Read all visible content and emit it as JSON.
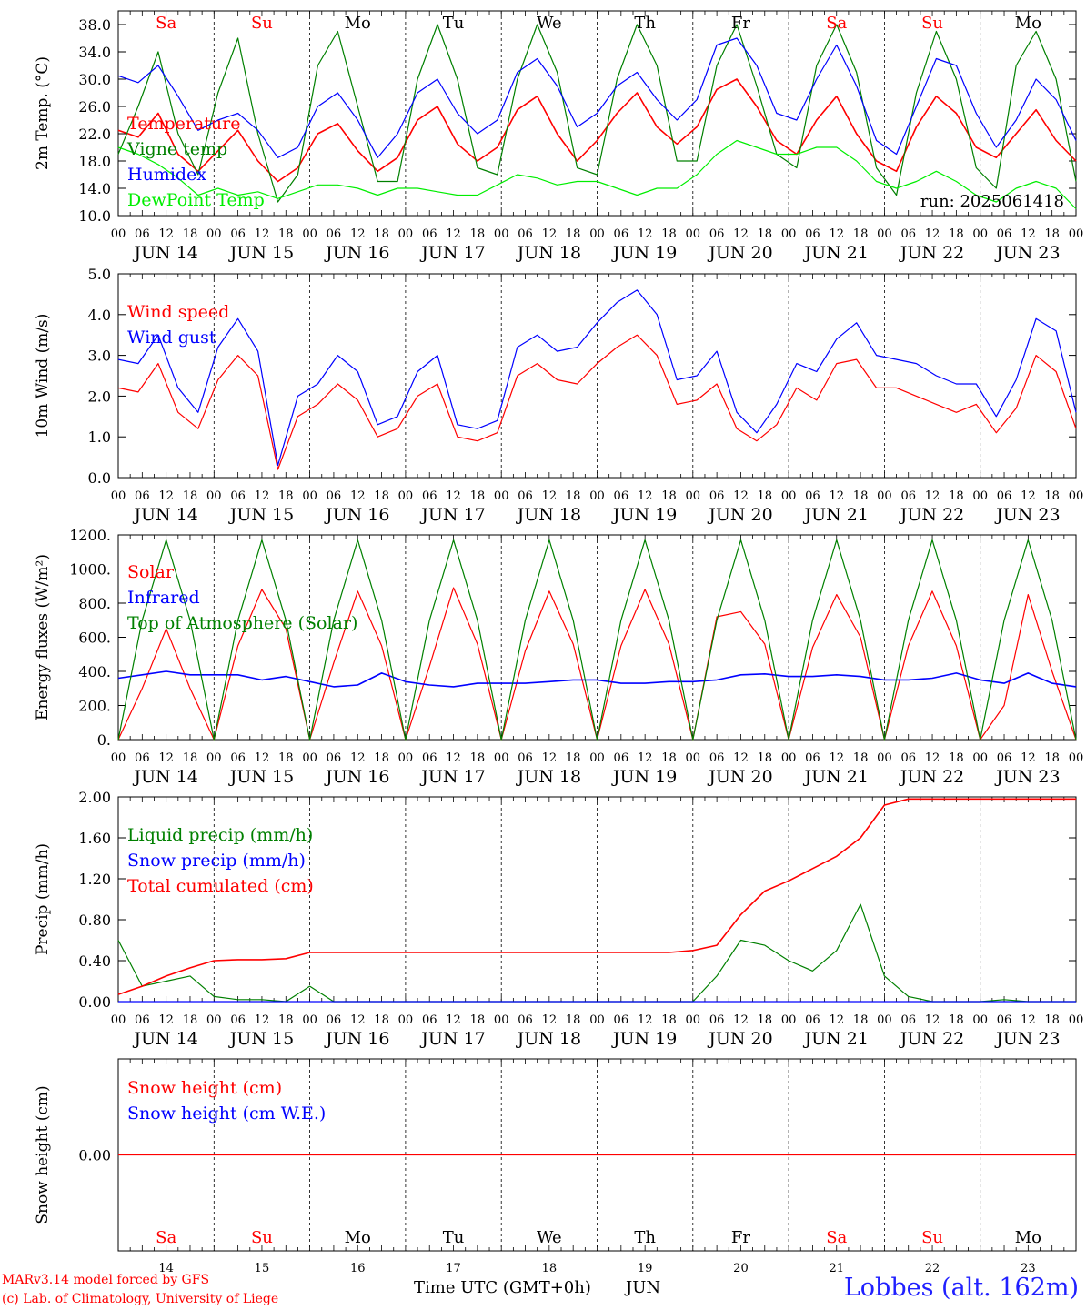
{
  "colors": {
    "red": "#ff0000",
    "dark_green": "#008000",
    "blue": "#0000ff",
    "light_green": "#00ee00",
    "black": "#000000"
  },
  "day_names": [
    "Sa",
    "Su",
    "Mo",
    "Tu",
    "We",
    "Th",
    "Fr",
    "Sa",
    "Su",
    "Mo"
  ],
  "weekend_days": [
    "Sa",
    "Su"
  ],
  "date_labels": [
    "JUN 14",
    "JUN 15",
    "JUN 16",
    "JUN 17",
    "JUN 18",
    "JUN 19",
    "JUN 20",
    "JUN 21",
    "JUN 22",
    "JUN 23"
  ],
  "hour_ticks": [
    "00",
    "06",
    "12",
    "18"
  ],
  "hour_end": "00",
  "bottom_day_numbers": [
    "14",
    "15",
    "16",
    "17",
    "18",
    "19",
    "20",
    "21",
    "22",
    "23"
  ],
  "footer": {
    "credit_line1": "MARv3.14 model forced by GFS",
    "credit_line2": "(c) Lab. of Climatology, University of Liege",
    "x_title": "Time UTC (GMT+0h)",
    "x_month": "JUN",
    "station": "Lobbes (alt. 162m)"
  },
  "chart_data": [
    {
      "type": "line",
      "ylabel": "2m Temp. (°C)",
      "ylim": [
        10,
        40
      ],
      "yticks": [
        "10.0",
        "14.0",
        "18.0",
        "22.0",
        "26.0",
        "30.0",
        "34.0",
        "38.0"
      ],
      "annotation": "run: 2025061418",
      "x_hours": {
        "start": "2025-06-14 00 UTC",
        "step_hours": 6
      },
      "legend": [
        {
          "name": "Temperature",
          "color": "#ff0000"
        },
        {
          "name": "Vigne temp",
          "color": "#008000"
        },
        {
          "name": "Humidex",
          "color": "#0000ff"
        },
        {
          "name": "DewPoint Temp",
          "color": "#00ee00"
        }
      ],
      "series": [
        {
          "name": "Temperature",
          "color": "#ff0000",
          "values": [
            22.5,
            21.5,
            25,
            19,
            16.5,
            19.5,
            22.5,
            18,
            15,
            17,
            22,
            23.5,
            19.5,
            16.5,
            18.5,
            24,
            26,
            20.5,
            18,
            20,
            25.5,
            27.5,
            22,
            18,
            21,
            25,
            28,
            23,
            20.5,
            23,
            28.5,
            30,
            26,
            21,
            19,
            24,
            27.5,
            22,
            18,
            16.5,
            23,
            27.5,
            25,
            20,
            18.5,
            22,
            25.5,
            21,
            18
          ]
        },
        {
          "name": "Vigne temp",
          "color": "#008000",
          "values": [
            19,
            26,
            34,
            22,
            16,
            28,
            36,
            22,
            12,
            16,
            32,
            37,
            26,
            15,
            15,
            30,
            38,
            30,
            17,
            16,
            30,
            38,
            31,
            17,
            16,
            30,
            38,
            32,
            18,
            18,
            32,
            38,
            29,
            19,
            17,
            32,
            38,
            31,
            17,
            13,
            28,
            37,
            30,
            17,
            14,
            32,
            37,
            30,
            15
          ]
        },
        {
          "name": "Humidex",
          "color": "#0000ff",
          "values": [
            30.5,
            29.5,
            32,
            27.5,
            22.5,
            24,
            25,
            22.5,
            18.5,
            20,
            26,
            28,
            24,
            18.5,
            22,
            28,
            30,
            25,
            22,
            24,
            31,
            33,
            29,
            23,
            25,
            29,
            31,
            27,
            24,
            27,
            35,
            36,
            32,
            25,
            24,
            30,
            35,
            29,
            21,
            19,
            26,
            33,
            32,
            25,
            20,
            24,
            30,
            27,
            21
          ]
        },
        {
          "name": "DewPoint Temp",
          "color": "#00ee00",
          "values": [
            20,
            19,
            17.5,
            15.5,
            13,
            14,
            13,
            13.5,
            12.5,
            13.5,
            14.5,
            14.5,
            14,
            13,
            14,
            14,
            13.5,
            13,
            13,
            14.5,
            16,
            15.5,
            14.5,
            15,
            15,
            14,
            13,
            14,
            14,
            16,
            19,
            21,
            20,
            19,
            19,
            20,
            20,
            18,
            15,
            14,
            15,
            16.5,
            15,
            13,
            12,
            14,
            15,
            14,
            11
          ]
        }
      ]
    },
    {
      "type": "line",
      "ylabel": "10m Wind (m/s)",
      "ylim": [
        0,
        5
      ],
      "yticks": [
        "0.0",
        "1.0",
        "2.0",
        "3.0",
        "4.0",
        "5.0"
      ],
      "x_hours": {
        "start": "2025-06-14 00 UTC",
        "step_hours": 6
      },
      "legend": [
        {
          "name": "Wind speed",
          "color": "#ff0000"
        },
        {
          "name": "Wind gust",
          "color": "#0000ff"
        }
      ],
      "series": [
        {
          "name": "Wind speed",
          "color": "#ff0000",
          "values": [
            2.2,
            2.1,
            2.8,
            1.6,
            1.2,
            2.4,
            3.0,
            2.5,
            0.2,
            1.5,
            1.8,
            2.3,
            1.9,
            1.0,
            1.2,
            2.0,
            2.3,
            1.0,
            0.9,
            1.1,
            2.5,
            2.8,
            2.4,
            2.3,
            2.8,
            3.2,
            3.5,
            3.0,
            1.8,
            1.9,
            2.3,
            1.2,
            0.9,
            1.3,
            2.2,
            1.9,
            2.8,
            2.9,
            2.2,
            2.2,
            2.0,
            1.8,
            1.6,
            1.8,
            1.1,
            1.7,
            3.0,
            2.6,
            1.2
          ]
        },
        {
          "name": "Wind gust",
          "color": "#0000ff",
          "values": [
            2.9,
            2.8,
            3.5,
            2.2,
            1.6,
            3.2,
            3.9,
            3.1,
            0.3,
            2.0,
            2.3,
            3.0,
            2.6,
            1.3,
            1.5,
            2.6,
            3.0,
            1.3,
            1.2,
            1.4,
            3.2,
            3.5,
            3.1,
            3.2,
            3.8,
            4.3,
            4.6,
            4.0,
            2.4,
            2.5,
            3.1,
            1.6,
            1.1,
            1.8,
            2.8,
            2.6,
            3.4,
            3.8,
            3.0,
            2.9,
            2.8,
            2.5,
            2.3,
            2.3,
            1.5,
            2.4,
            3.9,
            3.6,
            1.6
          ]
        }
      ]
    },
    {
      "type": "line",
      "ylabel": "Energy fluxes (W/m²)",
      "ylim": [
        0,
        1200
      ],
      "yticks": [
        "0.",
        "200.",
        "400.",
        "600.",
        "800.",
        "1000.",
        "1200."
      ],
      "x_hours": {
        "start": "2025-06-14 00 UTC",
        "step_hours": 6
      },
      "legend": [
        {
          "name": "Solar",
          "color": "#ff0000"
        },
        {
          "name": "Infrared",
          "color": "#0000ff"
        },
        {
          "name": "Top of Atmosphere (Solar)",
          "color": "#008000"
        }
      ],
      "series": [
        {
          "name": "Solar",
          "color": "#ff0000",
          "values": [
            0,
            300,
            650,
            300,
            0,
            550,
            880,
            650,
            0,
            450,
            870,
            550,
            0,
            430,
            890,
            560,
            0,
            520,
            870,
            560,
            0,
            550,
            880,
            560,
            0,
            720,
            750,
            560,
            0,
            540,
            850,
            600,
            0,
            550,
            870,
            550,
            0,
            200,
            850,
            400,
            0
          ]
        },
        {
          "name": "Infrared",
          "color": "#0000ff",
          "values": [
            360,
            380,
            400,
            380,
            380,
            380,
            350,
            370,
            340,
            310,
            320,
            390,
            340,
            320,
            310,
            330,
            330,
            330,
            340,
            350,
            350,
            330,
            330,
            340,
            340,
            350,
            380,
            385,
            370,
            370,
            380,
            370,
            350,
            350,
            360,
            390,
            350,
            330,
            390,
            330,
            310
          ]
        },
        {
          "name": "Top of Atmosphere (Solar)",
          "color": "#008000",
          "values": [
            0,
            700,
            1170,
            700,
            0,
            700,
            1170,
            700,
            0,
            700,
            1170,
            700,
            0,
            700,
            1170,
            700,
            0,
            700,
            1170,
            700,
            0,
            700,
            1170,
            700,
            0,
            700,
            1170,
            700,
            0,
            700,
            1170,
            700,
            0,
            700,
            1170,
            700,
            0,
            700,
            1170,
            700,
            0
          ]
        }
      ]
    },
    {
      "type": "line",
      "ylabel": "Precip (mm/h)",
      "ylim": [
        0,
        2
      ],
      "yticks": [
        "0.00",
        "0.40",
        "0.80",
        "1.20",
        "1.60",
        "2.00"
      ],
      "x_hours": {
        "start": "2025-06-14 00 UTC",
        "step_hours": 6
      },
      "legend": [
        {
          "name": "Liquid precip (mm/h)",
          "color": "#008000"
        },
        {
          "name": "Snow precip (mm/h)",
          "color": "#0000ff"
        },
        {
          "name": "Total cumulated (cm)",
          "color": "#ff0000"
        }
      ],
      "series": [
        {
          "name": "Liquid precip (mm/h)",
          "color": "#008000",
          "values": [
            0.6,
            0.15,
            0.2,
            0.25,
            0.05,
            0.02,
            0.02,
            0.0,
            0.15,
            0.0,
            0.0,
            0.0,
            0.0,
            0.0,
            0.0,
            0.0,
            0.0,
            0.0,
            0.0,
            0.0,
            0.0,
            0.0,
            0.0,
            0.0,
            0.0,
            0.25,
            0.6,
            0.55,
            0.4,
            0.3,
            0.5,
            0.95,
            0.25,
            0.05,
            0.0,
            0.0,
            0.0,
            0.02,
            0.0,
            0.0,
            0.0
          ]
        },
        {
          "name": "Snow precip (mm/h)",
          "color": "#0000ff",
          "values": [
            0,
            0,
            0,
            0,
            0,
            0,
            0,
            0,
            0,
            0,
            0,
            0,
            0,
            0,
            0,
            0,
            0,
            0,
            0,
            0,
            0,
            0,
            0,
            0,
            0,
            0,
            0,
            0,
            0,
            0,
            0,
            0,
            0,
            0,
            0,
            0,
            0,
            0,
            0,
            0,
            0
          ]
        },
        {
          "name": "Total cumulated (cm)",
          "color": "#ff0000",
          "values": [
            0.07,
            0.15,
            0.25,
            0.33,
            0.4,
            0.41,
            0.41,
            0.42,
            0.48,
            0.48,
            0.48,
            0.48,
            0.48,
            0.48,
            0.48,
            0.48,
            0.48,
            0.48,
            0.48,
            0.48,
            0.48,
            0.48,
            0.48,
            0.48,
            0.5,
            0.55,
            0.85,
            1.08,
            1.18,
            1.3,
            1.42,
            1.6,
            1.92,
            1.98,
            1.98,
            1.98,
            1.98,
            1.98,
            1.98,
            1.98,
            1.98
          ]
        }
      ]
    },
    {
      "type": "line",
      "ylabel": "Snow height (cm)",
      "yticks": [
        "0.00"
      ],
      "x_hours": {
        "start": "2025-06-14 00 UTC",
        "step_hours": 6
      },
      "legend": [
        {
          "name": "Snow height (cm)",
          "color": "#ff0000"
        },
        {
          "name": "Snow height (cm W.E.)",
          "color": "#0000ff"
        }
      ],
      "series": [
        {
          "name": "Snow height (cm)",
          "color": "#ff0000",
          "values": [
            0,
            0
          ]
        }
      ]
    }
  ]
}
